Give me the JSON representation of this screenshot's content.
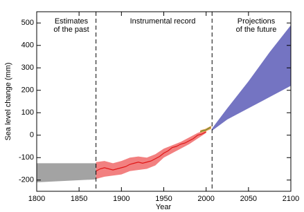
{
  "chart_data": {
    "type": "band",
    "xlabel": "Year",
    "ylabel": "Sea level change (mm)",
    "xlim": [
      1800,
      2100
    ],
    "xticks": [
      1800,
      1850,
      1900,
      1950,
      2000,
      2050,
      2100
    ],
    "ylim": [
      -250,
      550
    ],
    "yticks": [
      -200,
      -100,
      0,
      100,
      200,
      300,
      400,
      500
    ],
    "dividers": [
      1870,
      2007
    ],
    "annotations": [
      [
        "Estimates",
        "of the past"
      ],
      [
        "Instrumental record"
      ],
      [
        "Projections",
        "of the future"
      ]
    ],
    "series": [
      {
        "color": "#a3a3a3",
        "x": [
          1800,
          1870
        ],
        "upper": [
          -125,
          -125
        ],
        "lower": [
          -210,
          -197
        ]
      },
      {
        "color": "#f28080",
        "x": [
          1870,
          1880,
          1890,
          1900,
          1910,
          1920,
          1930,
          1940,
          1950,
          1960,
          1970,
          1980,
          1990,
          2000
        ],
        "upper": [
          -120,
          -115,
          -125,
          -115,
          -100,
          -95,
          -100,
          -85,
          -60,
          -45,
          -30,
          -10,
          10,
          25
        ],
        "lower": [
          -195,
          -185,
          -180,
          -175,
          -160,
          -155,
          -150,
          -135,
          -100,
          -80,
          -60,
          -40,
          -15,
          10
        ]
      },
      {
        "color": "#e01515",
        "x": [
          1870,
          1875,
          1880,
          1885,
          1890,
          1895,
          1900,
          1905,
          1910,
          1915,
          1920,
          1925,
          1930,
          1935,
          1940,
          1945,
          1950,
          1955,
          1960,
          1965,
          1970,
          1975,
          1980,
          1985,
          1990,
          1995,
          2000
        ],
        "values": [
          -160,
          -150,
          -145,
          -150,
          -155,
          -150,
          -145,
          -140,
          -130,
          -125,
          -120,
          -125,
          -120,
          -115,
          -105,
          -95,
          -80,
          -70,
          -55,
          -50,
          -40,
          -35,
          -25,
          -15,
          0,
          5,
          15
        ]
      },
      {
        "color": "#e8a050",
        "x": [
          1993,
          1999,
          2006
        ],
        "upper": [
          22,
          28,
          42
        ],
        "lower": [
          10,
          16,
          28
        ]
      },
      {
        "color": "#5f8a30",
        "x": [
          1993,
          1996,
          1999,
          2002,
          2005
        ],
        "values": [
          15,
          20,
          22,
          28,
          35
        ]
      },
      {
        "color": "#7474c2",
        "x": [
          2007,
          2025,
          2050,
          2075,
          2100
        ],
        "upper": [
          30,
          120,
          240,
          370,
          490
        ],
        "lower": [
          20,
          70,
          120,
          170,
          220
        ]
      }
    ]
  }
}
